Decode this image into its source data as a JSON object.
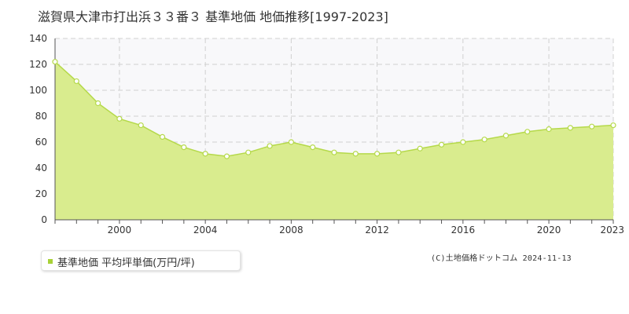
{
  "title": "滋賀県大津市打出浜３３番３ 基準地価 地価推移[1997-2023]",
  "legend_label": "基準地価 平均坪単価(万円/坪)",
  "credit": "(C)土地価格ドットコム 2024-11-13",
  "colors": {
    "fill": "#d9ec8e",
    "line": "#b5d94a",
    "marker_fill": "#ffffff",
    "marker_stroke": "#b5d94a",
    "legend": "#a8d137",
    "plot_bg": "#f8f8fa",
    "grid": "#d0d0d0"
  },
  "chart_data": {
    "type": "area",
    "x": [
      1997,
      1998,
      1999,
      2000,
      2001,
      2002,
      2003,
      2004,
      2005,
      2006,
      2007,
      2008,
      2009,
      2010,
      2011,
      2012,
      2013,
      2014,
      2015,
      2016,
      2017,
      2018,
      2019,
      2020,
      2021,
      2022,
      2023
    ],
    "series": [
      {
        "name": "基準地価 平均坪単価(万円/坪)",
        "values": [
          122,
          107,
          90,
          78,
          73,
          64,
          56,
          51,
          49,
          52,
          57,
          60,
          56,
          52,
          51,
          51,
          52,
          55,
          58,
          60,
          62,
          65,
          68,
          70,
          71,
          72,
          73
        ]
      }
    ],
    "xticks": [
      2000,
      2004,
      2008,
      2012,
      2016,
      2020,
      2023
    ],
    "yticks": [
      0,
      20,
      40,
      60,
      80,
      100,
      120,
      140
    ],
    "xlim": [
      1997,
      2023
    ],
    "ylim": [
      0,
      140
    ],
    "grid": true,
    "legend_position": "bottom-left"
  }
}
